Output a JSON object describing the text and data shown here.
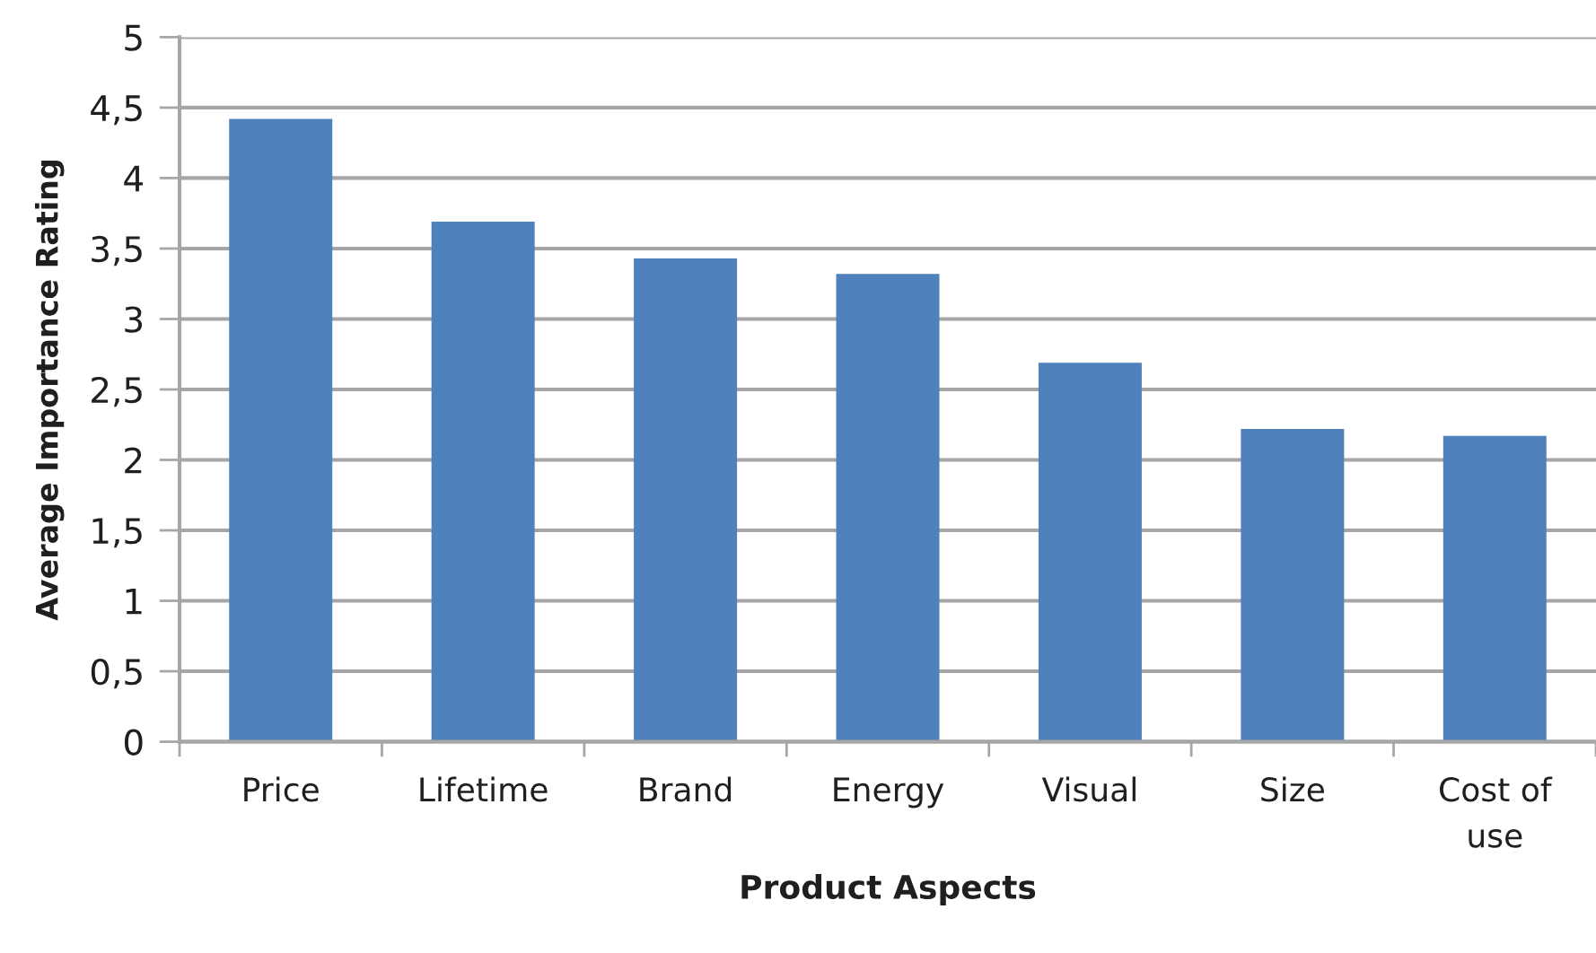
{
  "chart_data": {
    "type": "bar",
    "xlabel": "Product Aspects",
    "ylabel": "Average Importance Rating",
    "categories": [
      "Price",
      "Lifetime",
      "Brand",
      "Energy",
      "Visual",
      "Size",
      "Cost of use"
    ],
    "values": [
      4.42,
      3.69,
      3.43,
      3.32,
      2.69,
      2.22,
      2.17
    ],
    "color": "#4f81bd",
    "ylim": [
      0,
      5
    ],
    "yticks": [
      0,
      {
        "value": 0.5,
        "label": "0,5"
      },
      1,
      {
        "value": 1.5,
        "label": "1,5"
      },
      2,
      {
        "value": 2.5,
        "label": "2,5"
      },
      3,
      {
        "value": 3.5,
        "label": "3,5"
      },
      4,
      {
        "value": 4.5,
        "label": "4,5"
      },
      5
    ],
    "grid": "y"
  }
}
